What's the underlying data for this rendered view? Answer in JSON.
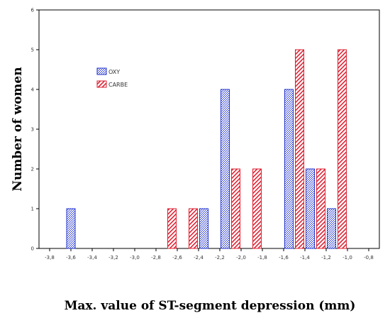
{
  "chart_data": {
    "type": "bar",
    "title": "",
    "xlabel": "Max. value of ST-segment depression (mm)",
    "ylabel": "Number of women",
    "xlim": [
      -3.9,
      -0.7
    ],
    "ylim": [
      0,
      6
    ],
    "x_ticks": [
      "-3,8",
      "-3,6",
      "-3,4",
      "-3,2",
      "-3,0",
      "-2,8",
      "-2,6",
      "-2,4",
      "-2,2",
      "-2,0",
      "-1,8",
      "-1,6",
      "-1,4",
      "-1,2",
      "-1,0",
      "-0,8"
    ],
    "y_ticks": [
      "0",
      "1",
      "2",
      "3",
      "4",
      "5",
      "6"
    ],
    "legend": {
      "placement": "upper-left"
    },
    "series": [
      {
        "name": "OXY",
        "color": "#2233cc",
        "points": [
          {
            "x": -3.6,
            "y": 1
          },
          {
            "x": -2.35,
            "y": 1
          },
          {
            "x": -2.15,
            "y": 4
          },
          {
            "x": -1.55,
            "y": 4
          },
          {
            "x": -1.35,
            "y": 2
          },
          {
            "x": -1.15,
            "y": 1
          }
        ]
      },
      {
        "name": "CARBE",
        "color": "#dd2233",
        "points": [
          {
            "x": -2.65,
            "y": 1
          },
          {
            "x": -2.45,
            "y": 1
          },
          {
            "x": -2.05,
            "y": 2
          },
          {
            "x": -1.85,
            "y": 2
          },
          {
            "x": -1.45,
            "y": 5
          },
          {
            "x": -1.25,
            "y": 2
          },
          {
            "x": -1.05,
            "y": 5
          }
        ]
      }
    ]
  }
}
